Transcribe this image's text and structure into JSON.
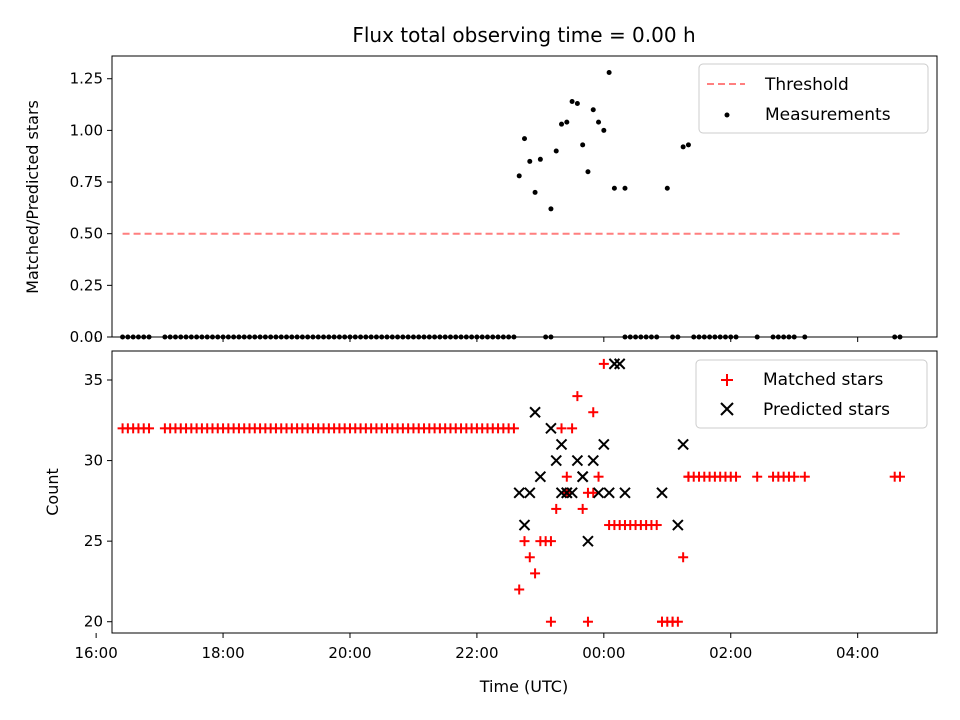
{
  "chart_data": [
    {
      "type": "scatter",
      "title": "Flux total observing time = 0.00 h",
      "ylabel": "Matched/Predicted stars",
      "xlabel": "",
      "xlim": [
        "16:15",
        "29:15"
      ],
      "ylim": [
        0,
        1.36
      ],
      "yticks": [
        "0.00",
        "0.25",
        "0.50",
        "0.75",
        "1.00",
        "1.25"
      ],
      "xticks": [
        "16:00",
        "18:00",
        "20:00",
        "22:00",
        "00:00",
        "02:00",
        "04:00"
      ],
      "show_xtick_labels": false,
      "legend_position": "upper right",
      "threshold": {
        "name": "Threshold",
        "color": "#ff7f7f",
        "y": 0.5,
        "x_range": [
          "16:25",
          "28:40"
        ]
      },
      "measurements": {
        "name": "Measurements",
        "color": "#000000",
        "x": [
          "22:40",
          "22:45",
          "22:50",
          "22:55",
          "23:00",
          "23:10",
          "23:15",
          "23:20",
          "23:25",
          "23:30",
          "23:35",
          "23:40",
          "23:45",
          "23:50",
          "23:55",
          "24:00",
          "24:05",
          "24:10",
          "24:20",
          "25:00",
          "25:15",
          "25:20"
        ],
        "y": [
          0.78,
          0.96,
          0.85,
          0.7,
          0.86,
          0.62,
          0.9,
          1.03,
          1.04,
          1.14,
          1.13,
          0.93,
          0.8,
          1.1,
          1.04,
          1.0,
          1.28,
          0.72,
          0.72,
          0.72,
          0.92,
          0.93
        ]
      },
      "zeros_x": [
        "16:25",
        "16:30",
        "16:35",
        "16:40",
        "16:45",
        "16:50",
        "17:05",
        "17:10",
        "17:15",
        "17:20",
        "17:25",
        "17:30",
        "17:35",
        "17:40",
        "17:45",
        "17:50",
        "17:55",
        "18:00",
        "18:05",
        "18:10",
        "18:15",
        "18:20",
        "18:25",
        "18:30",
        "18:35",
        "18:40",
        "18:45",
        "18:50",
        "18:55",
        "19:00",
        "19:05",
        "19:10",
        "19:15",
        "19:20",
        "19:25",
        "19:30",
        "19:35",
        "19:40",
        "19:45",
        "19:50",
        "19:55",
        "20:00",
        "20:05",
        "20:10",
        "20:15",
        "20:20",
        "20:25",
        "20:30",
        "20:35",
        "20:40",
        "20:45",
        "20:50",
        "20:55",
        "21:00",
        "21:05",
        "21:10",
        "21:15",
        "21:20",
        "21:25",
        "21:30",
        "21:35",
        "21:40",
        "21:45",
        "21:50",
        "21:55",
        "22:00",
        "22:05",
        "22:10",
        "22:15",
        "22:20",
        "22:25",
        "22:30",
        "22:35",
        "23:05",
        "23:10",
        "24:20",
        "24:25",
        "24:30",
        "24:35",
        "24:40",
        "24:45",
        "24:50",
        "25:05",
        "25:10",
        "25:25",
        "25:30",
        "25:35",
        "25:40",
        "25:45",
        "25:50",
        "25:55",
        "26:00",
        "26:05",
        "26:25",
        "26:40",
        "26:45",
        "26:50",
        "26:55",
        "27:00",
        "27:10",
        "28:35",
        "28:40"
      ]
    },
    {
      "type": "scatter",
      "title": "",
      "ylabel": "Count",
      "xlabel": "Time (UTC)",
      "xlim": [
        "16:15",
        "29:15"
      ],
      "ylim": [
        19.3,
        36.8
      ],
      "yticks": [
        "20",
        "25",
        "30",
        "35"
      ],
      "xticks": [
        "16:00",
        "18:00",
        "20:00",
        "22:00",
        "00:00",
        "02:00",
        "04:00"
      ],
      "show_xtick_labels": true,
      "legend_position": "upper right",
      "matched": {
        "name": "Matched stars",
        "color": "#ff0000",
        "x": [
          "22:40",
          "22:45",
          "22:50",
          "22:55",
          "23:00",
          "23:05",
          "23:10",
          "23:15",
          "23:20",
          "23:25",
          "23:30",
          "23:35",
          "23:40",
          "23:45",
          "23:50",
          "23:55",
          "24:00",
          "24:05",
          "24:10",
          "24:15",
          "24:20",
          "24:25",
          "24:30",
          "24:35",
          "24:40",
          "24:45",
          "24:50",
          "24:55",
          "25:00",
          "25:05",
          "25:10",
          "25:15",
          "25:20",
          "23:45",
          "24:55",
          "25:05",
          "23:25",
          "23:10",
          "23:50"
        ],
        "y": [
          22,
          25,
          24,
          23,
          25,
          25,
          25,
          27,
          32,
          29,
          32,
          34,
          27,
          28,
          33,
          29,
          36,
          26,
          26,
          26,
          26,
          26,
          26,
          26,
          26,
          26,
          26,
          20,
          20,
          20,
          20,
          24,
          29,
          20,
          20,
          20,
          28,
          20,
          28
        ]
      },
      "matched_flat_32": [
        "16:25",
        "16:30",
        "16:35",
        "16:40",
        "16:45",
        "16:50",
        "17:05",
        "17:10",
        "17:15",
        "17:20",
        "17:25",
        "17:30",
        "17:35",
        "17:40",
        "17:45",
        "17:50",
        "17:55",
        "18:00",
        "18:05",
        "18:10",
        "18:15",
        "18:20",
        "18:25",
        "18:30",
        "18:35",
        "18:40",
        "18:45",
        "18:50",
        "18:55",
        "19:00",
        "19:05",
        "19:10",
        "19:15",
        "19:20",
        "19:25",
        "19:30",
        "19:35",
        "19:40",
        "19:45",
        "19:50",
        "19:55",
        "20:00",
        "20:05",
        "20:10",
        "20:15",
        "20:20",
        "20:25",
        "20:30",
        "20:35",
        "20:40",
        "20:45",
        "20:50",
        "20:55",
        "21:00",
        "21:05",
        "21:10",
        "21:15",
        "21:20",
        "21:25",
        "21:30",
        "21:35",
        "21:40",
        "21:45",
        "21:50",
        "21:55",
        "22:00",
        "22:05",
        "22:10",
        "22:15",
        "22:20",
        "22:25",
        "22:30",
        "22:35"
      ],
      "matched_flat_29": [
        "25:20",
        "25:25",
        "25:30",
        "25:35",
        "25:40",
        "25:45",
        "25:50",
        "25:55",
        "26:00",
        "26:05",
        "26:25",
        "26:40",
        "26:45",
        "26:50",
        "26:55",
        "27:00",
        "27:10",
        "28:35",
        "28:40"
      ],
      "predicted": {
        "name": "Predicted stars",
        "color": "#000000",
        "x": [
          "22:40",
          "22:45",
          "22:50",
          "22:55",
          "23:00",
          "23:10",
          "23:15",
          "23:20",
          "23:25",
          "23:30",
          "23:35",
          "23:40",
          "23:45",
          "23:50",
          "23:55",
          "24:00",
          "24:05",
          "24:10",
          "24:15",
          "24:20",
          "24:55",
          "25:10",
          "25:15",
          "23:20",
          "23:40",
          "23:25"
        ],
        "y": [
          28,
          26,
          28,
          33,
          29,
          32,
          30,
          31,
          28,
          28,
          30,
          29,
          25,
          30,
          28,
          31,
          28,
          36,
          36,
          28,
          28,
          26,
          31,
          28,
          29,
          28
        ]
      }
    }
  ]
}
